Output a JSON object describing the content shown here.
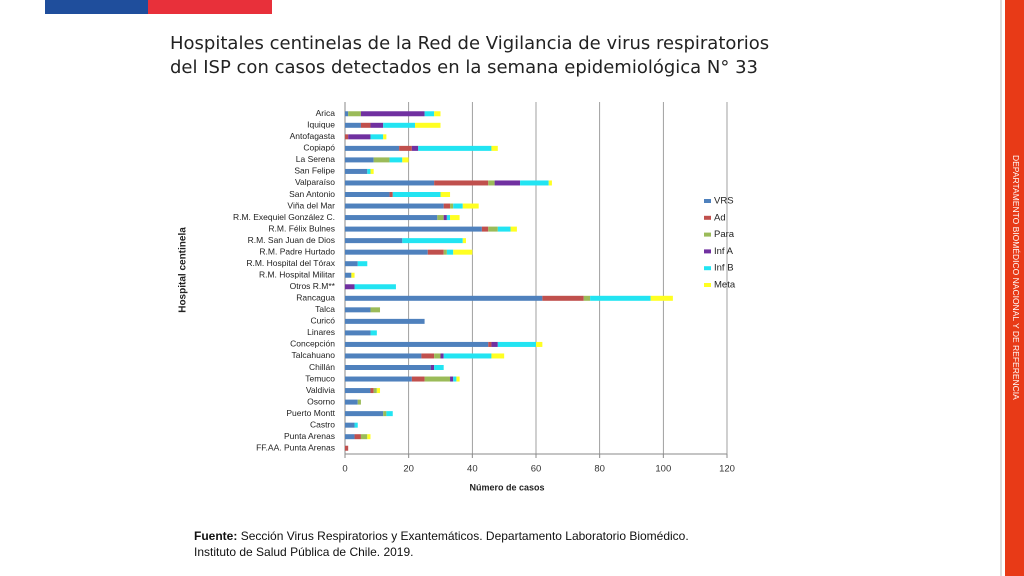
{
  "slide": {
    "title_lines": [
      "Hospitales centinelas de la Red de Vigilancia de virus respiratorios",
      "del ISP con casos detectados en la semana epidemiológica N° 33"
    ],
    "side_text": "DEPARTAMENTO BIOMÉDICO NACIONAL Y DE REFERENCIA",
    "footer_label": "Fuente:",
    "footer_lines": [
      "Sección Virus Respiratorios y Exantemáticos. Departamento Laboratorio Biomédico.",
      "Instituto de Salud Pública de Chile. 2019."
    ]
  },
  "chart_data": {
    "type": "stacked-hbar",
    "x_label": "Número de casos",
    "y_label": "Hospital centinela",
    "categories": [
      "Arica",
      "Iquique",
      "Antofagasta",
      "Copiapó",
      "La Serena",
      "San Felipe",
      "Valparaíso",
      "San Antonio",
      "Viña del Mar",
      "R.M. Exequiel González C.",
      "R.M. Félix Bulnes",
      "R.M. San Juan de Dios",
      "R.M. Padre Hurtado",
      "R.M. Hospital del Tórax",
      "R.M. Hospital Militar",
      "Otros R.M**",
      "Rancagua",
      "Talca",
      "Curicó",
      "Linares",
      "Concepción",
      "Talcahuano",
      "Chillán",
      "Temuco",
      "Valdivia",
      "Osorno",
      "Puerto Montt",
      "Castro",
      "Punta Arenas",
      "FF.AA. Punta Arenas"
    ],
    "series": [
      {
        "name": "VRS",
        "color": "#4f81bd",
        "values": [
          1,
          5,
          0,
          17,
          9,
          7,
          28,
          14,
          31,
          29,
          43,
          18,
          26,
          4,
          2,
          0,
          62,
          8,
          25,
          8,
          45,
          24,
          27,
          21,
          8,
          4,
          12,
          3,
          3,
          0
        ]
      },
      {
        "name": "Ad",
        "color": "#c0504d",
        "values": [
          0,
          3,
          1,
          4,
          0,
          0,
          17,
          1,
          2,
          0,
          2,
          0,
          5,
          0,
          0,
          0,
          13,
          0,
          0,
          0,
          1,
          4,
          0,
          4,
          1,
          0,
          0,
          0,
          2,
          1
        ]
      },
      {
        "name": "Para",
        "color": "#9bbb59",
        "values": [
          4,
          0,
          0,
          0,
          5,
          0,
          2,
          0,
          1,
          2,
          3,
          0,
          1,
          0,
          0,
          0,
          2,
          3,
          0,
          0,
          0,
          2,
          0,
          8,
          1,
          1,
          1,
          0,
          2,
          0
        ]
      },
      {
        "name": "Inf A",
        "color": "#7030a0",
        "values": [
          20,
          4,
          7,
          2,
          0,
          0,
          8,
          0,
          0,
          1,
          0,
          0,
          0,
          0,
          0,
          3,
          0,
          0,
          0,
          0,
          2,
          1,
          1,
          1,
          0,
          0,
          0,
          0,
          0,
          0
        ]
      },
      {
        "name": "Inf B",
        "color": "#22e4f2",
        "values": [
          3,
          10,
          4,
          23,
          4,
          1,
          9,
          15,
          3,
          1,
          4,
          19,
          2,
          3,
          0,
          13,
          19,
          0,
          0,
          2,
          12,
          15,
          3,
          1,
          0,
          0,
          2,
          1,
          0,
          0
        ]
      },
      {
        "name": "Meta",
        "color": "#ffff22",
        "values": [
          2,
          8,
          1,
          2,
          2,
          1,
          1,
          3,
          5,
          3,
          2,
          1,
          6,
          0,
          1,
          0,
          7,
          0,
          0,
          0,
          2,
          4,
          0,
          1,
          1,
          0,
          0,
          0,
          1,
          0
        ]
      }
    ],
    "xlim": [
      0,
      120
    ],
    "xticks": [
      0,
      20,
      40,
      60,
      80,
      100,
      120
    ],
    "grid": true,
    "legend": "right"
  }
}
